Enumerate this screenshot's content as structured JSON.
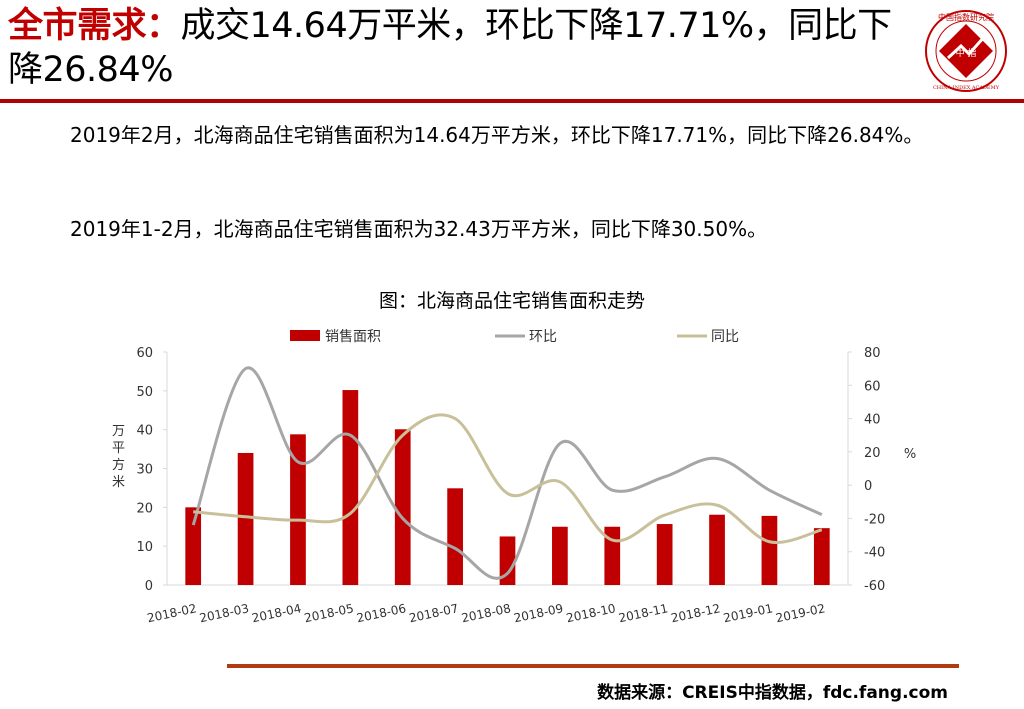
{
  "header": {
    "title_highlight": "全市需求：",
    "title_rest": "成交14.64万平米，环比下降17.71%，同比下降26.84%"
  },
  "logo": {
    "arc_text": "中国指数研究院",
    "center_text": "中 指",
    "english_text": "CHINA INDEX ACADEMY"
  },
  "paragraphs": [
    "2019年2月，北海商品住宅销售面积为14.64万平方米，环比下降17.71%，同比下降26.84%。",
    "2019年1-2月，北海商品住宅销售面积为32.43万平方米，同比下降30.50%。"
  ],
  "chart_title": "图：北海商品住宅销售面积走势",
  "chart_data": {
    "type": "bar",
    "categories": [
      "2018-02",
      "2018-03",
      "2018-04",
      "2018-05",
      "2018-06",
      "2018-07",
      "2018-08",
      "2018-09",
      "2018-10",
      "2018-11",
      "2018-12",
      "2019-01",
      "2019-02"
    ],
    "series": [
      {
        "name": "销售面积",
        "kind": "bar",
        "axis": "left",
        "values": [
          20.0,
          34.0,
          38.8,
          50.2,
          40.1,
          24.9,
          12.5,
          15.0,
          15.0,
          15.7,
          18.1,
          17.8,
          14.64
        ]
      },
      {
        "name": "环比",
        "kind": "line",
        "axis": "right",
        "values": [
          -24,
          70,
          14,
          30,
          -20,
          -38,
          -53,
          25,
          -3,
          5,
          16,
          -3,
          -17.71
        ]
      },
      {
        "name": "同比",
        "kind": "line",
        "axis": "right",
        "values": [
          -16,
          -19,
          -21,
          -17,
          30,
          40,
          -5,
          2,
          -33,
          -18,
          -12,
          -34,
          -26.84
        ]
      }
    ],
    "ylabel_left": "万平方米",
    "ylabel_right": "%",
    "ylim_left": [
      0,
      60
    ],
    "yticks_left": [
      "0",
      "10",
      "20",
      "30",
      "40",
      "50",
      "60"
    ],
    "ylim_right": [
      -60,
      80
    ],
    "yticks_right": [
      "-60",
      "-40",
      "-20",
      "0",
      "20",
      "40",
      "60",
      "80"
    ],
    "legend_position": "top",
    "grid": false,
    "colors": {
      "bar": "#c00000",
      "mom": "#a6a6a6",
      "yoy": "#c8c09a",
      "axis": "#d9d9d9"
    }
  },
  "footer": {
    "source": "数据来源：CREIS中指数据，fdc.fang.com"
  }
}
